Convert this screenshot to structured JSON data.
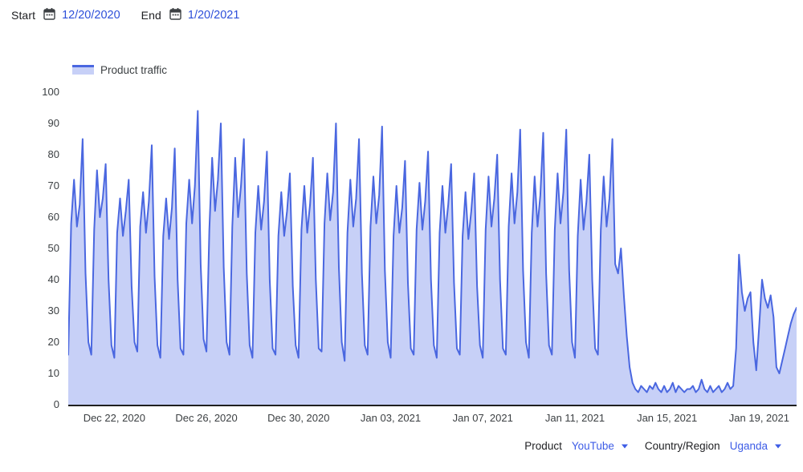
{
  "controls": {
    "start_label": "Start",
    "start_date": "12/20/2020",
    "end_label": "End",
    "end_date": "1/20/2021",
    "product_label": "Product",
    "product_value": "YouTube",
    "country_label": "Country/Region",
    "country_value": "Uganda"
  },
  "legend": {
    "label": "Product traffic"
  },
  "colors": {
    "line_blue": "#4a67e0",
    "fill_blue": "#c7d0f7",
    "link_blue": "#2d4fd9",
    "dropdown_blue": "#3d5ce6",
    "text_dark": "#202124",
    "axis_text": "#3c4043",
    "axis_line": "#1f1f1f"
  },
  "chart_data": {
    "type": "area",
    "title": "Product traffic",
    "xlabel": "",
    "ylabel": "",
    "grid": false,
    "legend_position": "top-left",
    "ylim": [
      0,
      100
    ],
    "y_ticks": [
      0,
      10,
      20,
      30,
      40,
      50,
      60,
      70,
      80,
      90,
      100
    ],
    "x_start_date": "12/20/2020",
    "x_end_date": "1/20/2021",
    "points_per_day": 8,
    "x_ticks": [
      {
        "day": 2,
        "label": "Dec 22, 2020"
      },
      {
        "day": 6,
        "label": "Dec 26, 2020"
      },
      {
        "day": 10,
        "label": "Dec 30, 2020"
      },
      {
        "day": 14,
        "label": "Jan 03, 2021"
      },
      {
        "day": 18,
        "label": "Jan 07, 2021"
      },
      {
        "day": 22,
        "label": "Jan 11, 2021"
      },
      {
        "day": 26,
        "label": "Jan 15, 2021"
      },
      {
        "day": 30,
        "label": "Jan 19, 2021"
      }
    ],
    "values": [
      16,
      58,
      72,
      57,
      64,
      85,
      42,
      20,
      16,
      56,
      75,
      60,
      66,
      77,
      40,
      19,
      15,
      55,
      66,
      54,
      62,
      72,
      38,
      20,
      17,
      57,
      68,
      55,
      65,
      83,
      41,
      19,
      15,
      54,
      66,
      53,
      63,
      82,
      40,
      18,
      16,
      58,
      72,
      58,
      70,
      94,
      45,
      21,
      17,
      56,
      79,
      62,
      72,
      90,
      44,
      20,
      16,
      57,
      79,
      60,
      70,
      85,
      42,
      19,
      15,
      55,
      70,
      56,
      65,
      81,
      40,
      18,
      16,
      54,
      68,
      54,
      62,
      74,
      38,
      19,
      15,
      56,
      70,
      55,
      64,
      79,
      40,
      18,
      17,
      58,
      74,
      59,
      68,
      90,
      44,
      20,
      14,
      55,
      72,
      57,
      66,
      85,
      42,
      19,
      16,
      57,
      73,
      58,
      67,
      89,
      43,
      20,
      15,
      54,
      70,
      55,
      63,
      78,
      39,
      18,
      16,
      56,
      71,
      56,
      65,
      81,
      40,
      19,
      15,
      55,
      70,
      55,
      64,
      77,
      39,
      18,
      16,
      54,
      68,
      53,
      62,
      74,
      38,
      19,
      15,
      56,
      73,
      57,
      66,
      80,
      40,
      18,
      16,
      57,
      74,
      58,
      68,
      88,
      43,
      20,
      15,
      55,
      73,
      57,
      67,
      87,
      42,
      19,
      16,
      56,
      74,
      58,
      68,
      88,
      43,
      20,
      15,
      54,
      72,
      56,
      65,
      80,
      40,
      18,
      16,
      56,
      73,
      57,
      66,
      85,
      45,
      42,
      50,
      35,
      22,
      12,
      7,
      5,
      4,
      6,
      5,
      4,
      6,
      5,
      7,
      5,
      4,
      6,
      4,
      5,
      7,
      4,
      6,
      5,
      4,
      5,
      5,
      6,
      4,
      5,
      8,
      5,
      4,
      6,
      4,
      5,
      6,
      4,
      5,
      7,
      5,
      6,
      18,
      48,
      36,
      30,
      34,
      36,
      20,
      11,
      25,
      40,
      34,
      31,
      35,
      28,
      12,
      10,
      14,
      18,
      22,
      26,
      29,
      31
    ]
  }
}
